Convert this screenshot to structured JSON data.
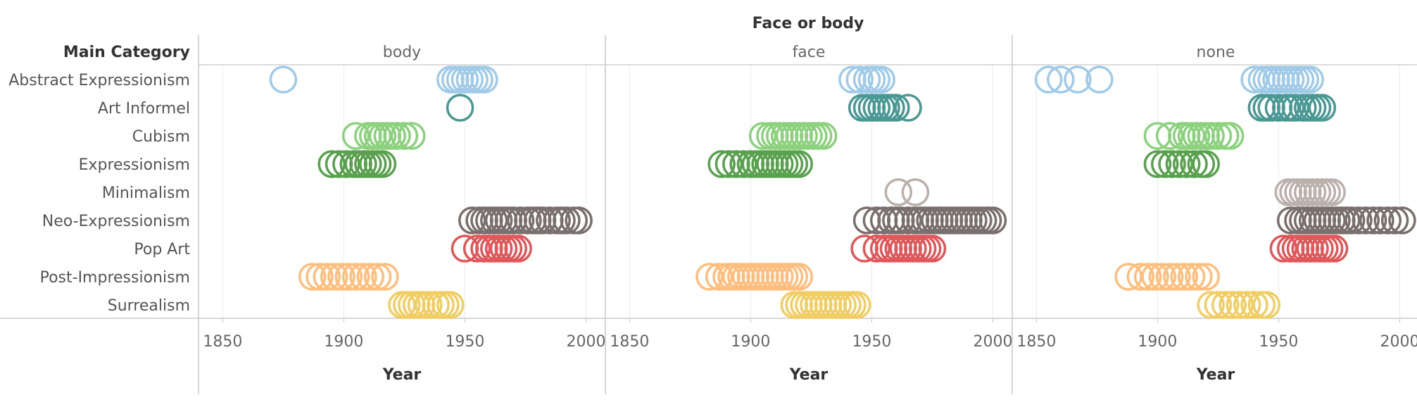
{
  "chart_data": {
    "type": "scatter",
    "title": "Face or body",
    "row_header": "Main Category",
    "xlabel": "Year",
    "xlim": [
      1840,
      2008
    ],
    "xticks": [
      1850,
      1900,
      1950,
      2000
    ],
    "mark": "open-circle",
    "categories": [
      "Abstract Expressionism",
      "Art Informel",
      "Cubism",
      "Expressionism",
      "Minimalism",
      "Neo-Expressionism",
      "Pop Art",
      "Post-Impressionism",
      "Surrealism"
    ],
    "category_colors": {
      "Abstract Expressionism": "#A0CBE8",
      "Art Informel": "#499894",
      "Cubism": "#8CD17D",
      "Expressionism": "#59A14F",
      "Minimalism": "#BAB0AC",
      "Neo-Expressionism": "#79706E",
      "Pop Art": "#E15759",
      "Post-Impressionism": "#FFBE7D",
      "Surrealism": "#F1CE63"
    },
    "panels": [
      {
        "name": "body",
        "series": [
          {
            "category": "Abstract Expressionism",
            "x": [
              1875,
              1944,
              1946,
              1948,
              1950,
              1952,
              1954,
              1956,
              1958
            ]
          },
          {
            "category": "Art Informel",
            "x": [
              1948
            ]
          },
          {
            "category": "Cubism",
            "x": [
              1905,
              1910,
              1912,
              1914,
              1916,
              1918,
              1920,
              1922,
              1925,
              1928
            ]
          },
          {
            "category": "Expressionism",
            "x": [
              1895,
              1898,
              1901,
              1904,
              1906,
              1908,
              1910,
              1912,
              1914,
              1916
            ]
          },
          {
            "category": "Minimalism",
            "x": []
          },
          {
            "category": "Neo-Expressionism",
            "x": [
              1953,
              1956,
              1958,
              1960,
              1962,
              1964,
              1966,
              1968,
              1970,
              1973,
              1976,
              1978,
              1980,
              1982,
              1985,
              1988,
              1990,
              1992,
              1995,
              1997
            ]
          },
          {
            "category": "Pop Art",
            "x": [
              1950,
              1955,
              1958,
              1960,
              1962,
              1964,
              1966,
              1968,
              1970,
              1972
            ]
          },
          {
            "category": "Post-Impressionism",
            "x": [
              1887,
              1890,
              1893,
              1896,
              1899,
              1902,
              1905,
              1908,
              1911,
              1914,
              1917
            ]
          },
          {
            "category": "Surrealism",
            "x": [
              1924,
              1926,
              1928,
              1930,
              1932,
              1935,
              1938,
              1940,
              1942,
              1944
            ]
          }
        ]
      },
      {
        "name": "face",
        "series": [
          {
            "category": "Abstract Expressionism",
            "x": [
              1942,
              1945,
              1948,
              1950,
              1952,
              1954
            ]
          },
          {
            "category": "Art Informel",
            "x": [
              1946,
              1948,
              1950,
              1952,
              1954,
              1956,
              1958,
              1960,
              1965
            ]
          },
          {
            "category": "Cubism",
            "x": [
              1905,
              1908,
              1910,
              1912,
              1914,
              1916,
              1918,
              1920,
              1922,
              1924,
              1926,
              1928,
              1930
            ]
          },
          {
            "category": "Expressionism",
            "x": [
              1888,
              1891,
              1894,
              1897,
              1900,
              1902,
              1904,
              1906,
              1908,
              1910,
              1912,
              1914,
              1916,
              1918,
              1920
            ]
          },
          {
            "category": "Minimalism",
            "x": [
              1961,
              1968
            ]
          },
          {
            "category": "Neo-Expressionism",
            "x": [
              1948,
              1952,
              1955,
              1958,
              1960,
              1962,
              1965,
              1968,
              1970,
              1972,
              1974,
              1976,
              1978,
              1980,
              1982,
              1984,
              1986,
              1988,
              1990,
              1992,
              1994,
              1996,
              1998,
              2000
            ]
          },
          {
            "category": "Pop Art",
            "x": [
              1947,
              1952,
              1955,
              1957,
              1959,
              1961,
              1963,
              1965,
              1967,
              1969,
              1971,
              1973,
              1975
            ]
          },
          {
            "category": "Post-Impressionism",
            "x": [
              1883,
              1887,
              1890,
              1892,
              1894,
              1896,
              1898,
              1900,
              1902,
              1904,
              1906,
              1908,
              1910,
              1912,
              1914,
              1916,
              1918,
              1920
            ]
          },
          {
            "category": "Surrealism",
            "x": [
              1918,
              1920,
              1922,
              1924,
              1926,
              1928,
              1930,
              1932,
              1934,
              1936,
              1938,
              1940,
              1942,
              1944
            ]
          }
        ]
      },
      {
        "name": "none",
        "series": [
          {
            "category": "Abstract Expressionism",
            "x": [
              1855,
              1860,
              1867,
              1876,
              1940,
              1943,
              1945,
              1947,
              1949,
              1951,
              1953,
              1955,
              1957,
              1959,
              1961,
              1963
            ]
          },
          {
            "category": "Art Informel",
            "x": [
              1943,
              1945,
              1947,
              1950,
              1953,
              1955,
              1957,
              1960,
              1962,
              1964,
              1966,
              1968
            ]
          },
          {
            "category": "Cubism",
            "x": [
              1900,
              1905,
              1910,
              1912,
              1914,
              1916,
              1918,
              1920,
              1922,
              1925,
              1928,
              1930
            ]
          },
          {
            "category": "Expressionism",
            "x": [
              1900,
              1903,
              1906,
              1909,
              1912,
              1915,
              1918,
              1920
            ]
          },
          {
            "category": "Minimalism",
            "x": [
              1954,
              1956,
              1958,
              1960,
              1962,
              1964,
              1966,
              1968,
              1970,
              1972
            ]
          },
          {
            "category": "Neo-Expressionism",
            "x": [
              1955,
              1958,
              1960,
              1962,
              1964,
              1966,
              1968,
              1970,
              1972,
              1974,
              1976,
              1978,
              1980,
              1983,
              1986,
              1989,
              1992,
              1995,
              1998,
              2001
            ]
          },
          {
            "category": "Pop Art",
            "x": [
              1952,
              1955,
              1957,
              1959,
              1961,
              1963,
              1965,
              1967,
              1969,
              1971,
              1973
            ]
          },
          {
            "category": "Post-Impressionism",
            "x": [
              1888,
              1893,
              1896,
              1899,
              1902,
              1905,
              1908,
              1911,
              1914,
              1917,
              1920
            ]
          },
          {
            "category": "Surrealism",
            "x": [
              1922,
              1925,
              1928,
              1931,
              1934,
              1937,
              1940,
              1943,
              1945
            ]
          }
        ]
      }
    ]
  }
}
